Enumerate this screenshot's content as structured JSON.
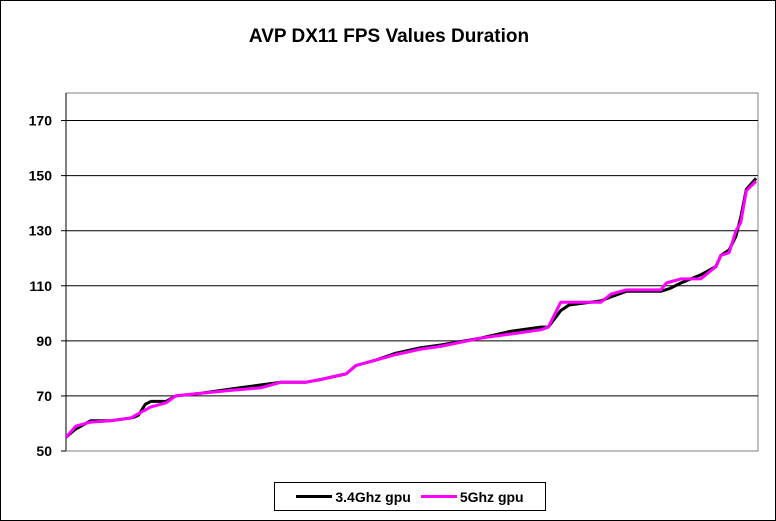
{
  "chart_data": {
    "type": "line",
    "title": "AVP DX11 FPS Values Duration",
    "xlabel": "",
    "ylabel": "",
    "xlim": [
      0,
      100
    ],
    "ylim": [
      50,
      180
    ],
    "yticks": [
      50,
      70,
      90,
      110,
      130,
      150,
      170
    ],
    "grid": true,
    "legend_position": "bottom",
    "series": [
      {
        "name": "3.4Ghz gpu",
        "color": "#000000",
        "x": [
          0,
          1.4,
          3.6,
          6.5,
          9.4,
          10.1,
          10.5,
          11.5,
          12.3,
          14.5,
          15.9,
          19.6,
          23.9,
          28.3,
          31.2,
          34.8,
          37,
          40.6,
          42,
          44.9,
          47.8,
          51.4,
          54.3,
          60.1,
          64.5,
          68.8,
          69.9,
          71.7,
          72.9,
          77.5,
          79,
          81.2,
          86.2,
          87.5,
          89.1,
          92,
          94.2,
          94.9,
          96.1,
          97.1,
          97.8,
          98.6,
          100
        ],
        "y": [
          55,
          58,
          61,
          61,
          62,
          62.5,
          63,
          67,
          68,
          68,
          70,
          71,
          72.5,
          74,
          75,
          75,
          76,
          78,
          81,
          83,
          85.5,
          87.5,
          88.5,
          91,
          93.5,
          95,
          95,
          101,
          103,
          104.5,
          106,
          108,
          108,
          109,
          111,
          114,
          117,
          121,
          123,
          128,
          135,
          145,
          149
        ]
      },
      {
        "name": "5Ghz gpu",
        "color": "#ff00ff",
        "x": [
          0,
          1.4,
          3.6,
          6.5,
          9.4,
          10.1,
          12.3,
          14.5,
          15.9,
          19.6,
          23.9,
          28.3,
          31.2,
          34.8,
          37,
          40.6,
          42,
          44.9,
          47.8,
          51.4,
          54.3,
          60.1,
          64.5,
          68.8,
          69.9,
          71.7,
          77.5,
          79,
          81.2,
          86.2,
          87,
          89.1,
          92,
          94.2,
          94.9,
          96.1,
          97.1,
          97.8,
          98.6,
          100
        ],
        "y": [
          55,
          59,
          60.5,
          61,
          62,
          63,
          66,
          67.5,
          70,
          71,
          72,
          73,
          75,
          75,
          76,
          78,
          81,
          83,
          85,
          87,
          88,
          91,
          92.5,
          94,
          95,
          104,
          104,
          107,
          108.5,
          108.5,
          111,
          112.5,
          112.5,
          117,
          121,
          122,
          130,
          133,
          144.5,
          148
        ]
      }
    ]
  }
}
